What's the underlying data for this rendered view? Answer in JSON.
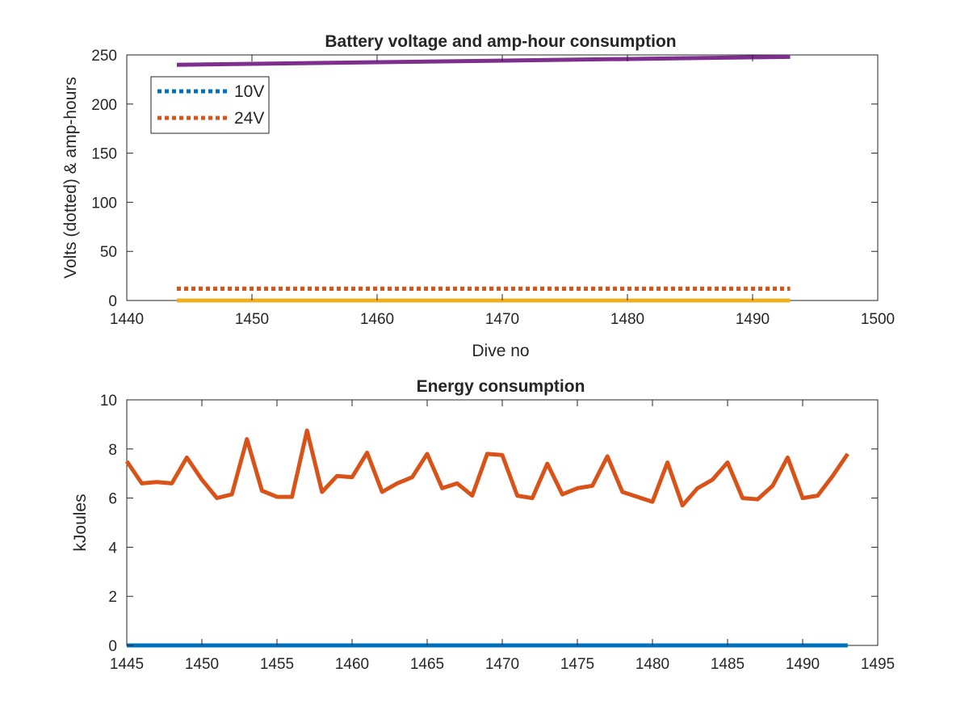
{
  "chart_data": [
    {
      "type": "line",
      "title": "Battery voltage and amp-hour consumption",
      "xlabel": "Dive no",
      "ylabel": "Volts (dotted) & amp-hours",
      "xlim": [
        1440,
        1500
      ],
      "ylim": [
        0,
        250
      ],
      "xticks": [
        1440,
        1450,
        1460,
        1470,
        1480,
        1490,
        1500
      ],
      "yticks": [
        0,
        50,
        100,
        150,
        200,
        250
      ],
      "grid": false,
      "legend_position": "top-left",
      "legend": [
        "10V",
        "24V"
      ],
      "series": [
        {
          "name": "10V",
          "style": "dotted",
          "color": "#0072BD",
          "x": [
            1444,
            1493
          ],
          "values": [
            12,
            12
          ]
        },
        {
          "name": "24V",
          "style": "dotted",
          "color": "#D95319",
          "x": [
            1444,
            1493
          ],
          "values": [
            12,
            12
          ]
        },
        {
          "style": "solid",
          "color": "#EDB120",
          "x": [
            1444,
            1493
          ],
          "values": [
            0,
            0
          ]
        },
        {
          "style": "solid",
          "color": "#7E2F8E",
          "x": [
            1444,
            1493
          ],
          "values": [
            240,
            248
          ]
        }
      ]
    },
    {
      "type": "line",
      "title": "Energy consumption",
      "xlabel": "",
      "ylabel": "kJoules",
      "xlim": [
        1445,
        1495
      ],
      "ylim": [
        0,
        10
      ],
      "xticks": [
        1445,
        1450,
        1455,
        1460,
        1465,
        1470,
        1475,
        1480,
        1485,
        1490,
        1495
      ],
      "yticks": [
        0,
        2,
        4,
        6,
        8,
        10
      ],
      "grid": false,
      "x": [
        1445,
        1446,
        1447,
        1448,
        1449,
        1450,
        1451,
        1452,
        1453,
        1454,
        1455,
        1456,
        1457,
        1458,
        1459,
        1460,
        1461,
        1462,
        1463,
        1464,
        1465,
        1466,
        1467,
        1468,
        1469,
        1470,
        1471,
        1472,
        1473,
        1474,
        1475,
        1476,
        1477,
        1478,
        1479,
        1480,
        1481,
        1482,
        1483,
        1484,
        1485,
        1486,
        1487,
        1488,
        1489,
        1490,
        1491,
        1492,
        1493
      ],
      "series": [
        {
          "style": "solid",
          "color": "#D95319",
          "values": [
            7.5,
            6.6,
            6.65,
            6.6,
            7.65,
            6.75,
            6.0,
            6.15,
            8.4,
            6.3,
            6.05,
            6.05,
            8.75,
            6.25,
            6.9,
            6.85,
            7.85,
            6.25,
            6.6,
            6.85,
            7.8,
            6.4,
            6.6,
            6.1,
            7.8,
            7.75,
            6.1,
            6.0,
            7.4,
            6.15,
            6.4,
            6.5,
            7.7,
            6.25,
            6.05,
            5.85,
            7.45,
            5.7,
            6.4,
            6.75,
            7.45,
            6.0,
            5.95,
            6.5,
            7.65,
            6.0,
            6.1,
            6.9,
            7.8
          ]
        },
        {
          "style": "solid",
          "color": "#0072BD",
          "values": [
            0,
            0,
            0,
            0,
            0,
            0,
            0,
            0,
            0,
            0,
            0,
            0,
            0,
            0,
            0,
            0,
            0,
            0,
            0,
            0,
            0,
            0,
            0,
            0,
            0,
            0,
            0,
            0,
            0,
            0,
            0,
            0,
            0,
            0,
            0,
            0,
            0,
            0,
            0,
            0,
            0,
            0,
            0,
            0,
            0,
            0,
            0,
            0,
            0
          ]
        }
      ]
    }
  ]
}
